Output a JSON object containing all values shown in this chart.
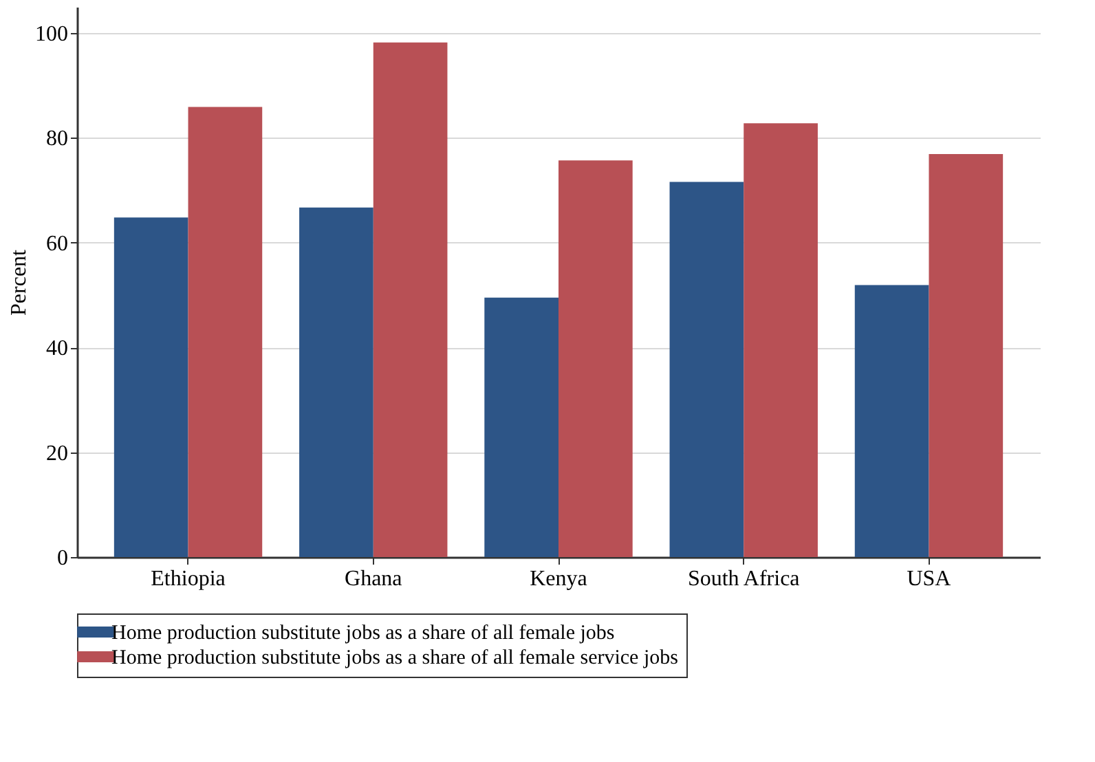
{
  "chart_data": {
    "type": "bar",
    "ylabel": "Percent",
    "categories": [
      "Ethiopia",
      "Ghana",
      "Kenya",
      "South Africa",
      "USA"
    ],
    "series": [
      {
        "name": "Home production substitute jobs as a share of all female jobs",
        "color": "#2d5587",
        "values": [
          64.8,
          66.7,
          49.5,
          71.6,
          51.9
        ]
      },
      {
        "name": "Home production substitute jobs as a share of all female service jobs",
        "color": "#b85055",
        "values": [
          85.9,
          98.2,
          75.7,
          82.8,
          76.9
        ]
      }
    ],
    "ylim": [
      0,
      105
    ],
    "yticks": [
      0,
      20,
      40,
      60,
      80,
      100
    ],
    "grid": "y",
    "legend": "bottom"
  }
}
